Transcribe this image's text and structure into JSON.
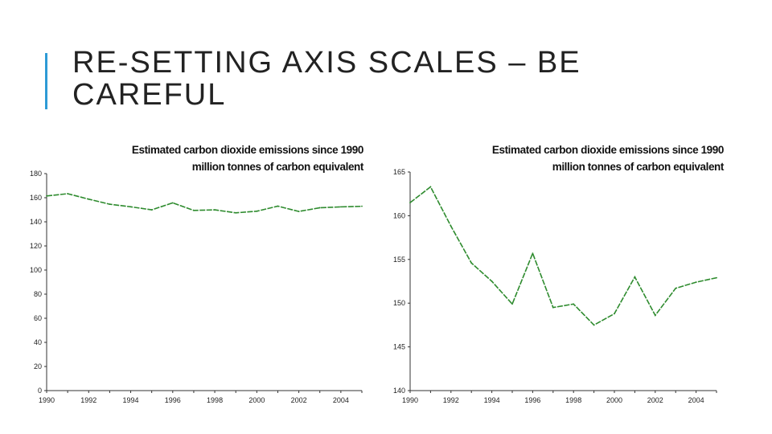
{
  "slide": {
    "title": "RE-SETTING AXIS SCALES – BE CAREFUL",
    "accent_color": "#2e9bd6"
  },
  "chart_data": [
    {
      "type": "line",
      "title": "Estimated carbon dioxide emissions since 1990",
      "subtitle": "million tonnes of carbon equivalent",
      "x": [
        1990,
        1991,
        1992,
        1993,
        1994,
        1995,
        1996,
        1997,
        1998,
        1999,
        2000,
        2001,
        2002,
        2003,
        2004,
        2005
      ],
      "series": [
        {
          "values": [
            161.5,
            163.3,
            158.8,
            154.6,
            152.5,
            149.9,
            155.7,
            149.5,
            149.9,
            147.5,
            148.8,
            153.0,
            148.6,
            151.7,
            152.4,
            152.9
          ],
          "color": "#2e8b2e"
        }
      ],
      "xticks": [
        "1990",
        "1992",
        "1994",
        "1996",
        "1998",
        "2000",
        "2002",
        "2004"
      ],
      "yticks": [
        "0",
        "20",
        "40",
        "60",
        "80",
        "100",
        "120",
        "140",
        "160",
        "180"
      ],
      "xlim": [
        1990,
        2005
      ],
      "ylim": [
        0,
        180
      ],
      "grid": false
    },
    {
      "type": "line",
      "title": "Estimated carbon dioxide emissions since 1990",
      "subtitle": "million tonnes of carbon equivalent",
      "x": [
        1990,
        1991,
        1992,
        1993,
        1994,
        1995,
        1996,
        1997,
        1998,
        1999,
        2000,
        2001,
        2002,
        2003,
        2004,
        2005
      ],
      "series": [
        {
          "values": [
            161.5,
            163.3,
            158.8,
            154.6,
            152.5,
            149.9,
            155.7,
            149.5,
            149.9,
            147.5,
            148.8,
            153.0,
            148.6,
            151.7,
            152.4,
            152.9
          ],
          "color": "#2e8b2e"
        }
      ],
      "xticks": [
        "1990",
        "1992",
        "1994",
        "1996",
        "1998",
        "2000",
        "2002",
        "2004"
      ],
      "yticks": [
        "140",
        "145",
        "150",
        "155",
        "160",
        "165"
      ],
      "xlim": [
        1990,
        2005
      ],
      "ylim": [
        140,
        165
      ],
      "grid": false
    }
  ]
}
